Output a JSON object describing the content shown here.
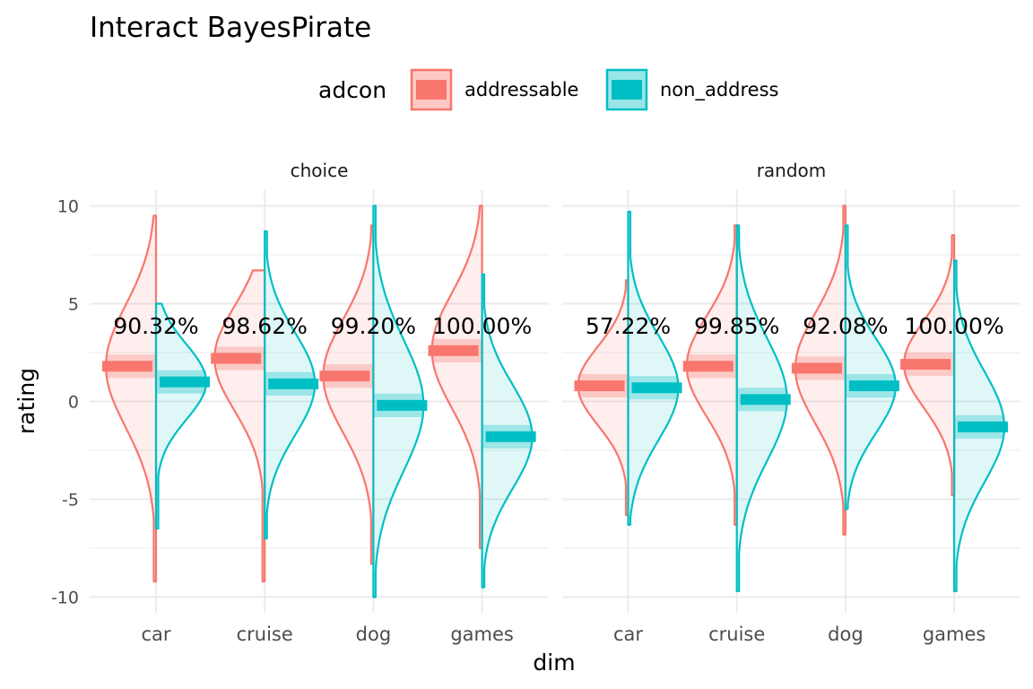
{
  "chart_data": {
    "type": "violin",
    "title": "Interact BayesPirate",
    "xlabel": "dim",
    "ylabel": "rating",
    "ylim": [
      -10.8,
      10.8
    ],
    "yticks": [
      10,
      5,
      0,
      -5,
      -10
    ],
    "ytick_labels": [
      "10",
      "5",
      "0",
      "-5",
      "-10"
    ],
    "categories": [
      "car",
      "cruise",
      "dog",
      "games"
    ],
    "grid": true,
    "legend": {
      "title": "adcon",
      "position": "top",
      "entries": [
        "addressable",
        "non_address"
      ]
    },
    "colors": {
      "addressable": "#F8766D",
      "non_address": "#00BFC4",
      "grid": "#EBEBEB",
      "text": "#000000",
      "tick_text": "#4D4D4D"
    },
    "panels": [
      {
        "label": "choice",
        "annotations": [
          "90.32%",
          "98.62%",
          "99.20%",
          "100.00%"
        ],
        "series": [
          {
            "name": "addressable",
            "means": [
              1.8,
              2.2,
              1.3,
              2.6
            ],
            "spans": [
              [
                -9.2,
                9.5
              ],
              [
                -9.2,
                6.7
              ],
              [
                -8.3,
                9.0
              ],
              [
                -7.5,
                10.0
              ]
            ]
          },
          {
            "name": "non_address",
            "means": [
              1.0,
              0.9,
              -0.2,
              -1.8
            ],
            "spans": [
              [
                -6.5,
                5.0
              ],
              [
                -7.0,
                8.7
              ],
              [
                -10.0,
                10.0
              ],
              [
                -9.5,
                6.5
              ]
            ]
          }
        ]
      },
      {
        "label": "random",
        "annotations": [
          "57.22%",
          "99.85%",
          "92.08%",
          "100.00%"
        ],
        "series": [
          {
            "name": "addressable",
            "means": [
              0.8,
              1.8,
              1.7,
              1.9
            ],
            "spans": [
              [
                -5.8,
                6.2
              ],
              [
                -6.3,
                9.0
              ],
              [
                -6.8,
                10.0
              ],
              [
                -4.8,
                8.5
              ]
            ]
          },
          {
            "name": "non_address",
            "means": [
              0.7,
              0.1,
              0.8,
              -1.3
            ],
            "spans": [
              [
                -6.3,
                9.7
              ],
              [
                -9.7,
                9.0
              ],
              [
                -5.5,
                9.0
              ],
              [
                -9.7,
                7.2
              ]
            ]
          }
        ]
      }
    ]
  }
}
